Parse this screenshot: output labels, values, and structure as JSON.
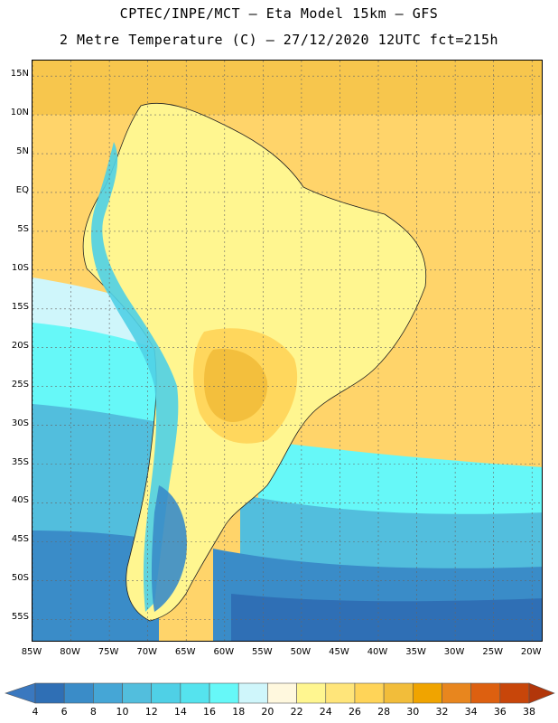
{
  "title_line1": "CPTEC/INPE/MCT –  Eta Model 15km – GFS",
  "title_line2": "2 Metre Temperature (C) – 27/12/2020 12UTC fct=215h",
  "lat_labels": [
    "15N",
    "10N",
    "5N",
    "EQ",
    "5S",
    "10S",
    "15S",
    "20S",
    "25S",
    "30S",
    "35S",
    "40S",
    "45S",
    "50S",
    "55S"
  ],
  "lon_labels": [
    "85W",
    "80W",
    "75W",
    "70W",
    "65W",
    "60W",
    "55W",
    "50W",
    "45W",
    "40W",
    "35W",
    "30W",
    "25W",
    "20W"
  ],
  "colorbar": {
    "labels": [
      "4",
      "6",
      "8",
      "10",
      "12",
      "14",
      "16",
      "18",
      "20",
      "22",
      "24",
      "26",
      "28",
      "30",
      "32",
      "34",
      "36",
      "38"
    ],
    "colors": [
      "#3a78bf",
      "#2f6fb5",
      "#3a8cc8",
      "#45a6d6",
      "#52bedd",
      "#4fd0e6",
      "#55e3ee",
      "#66f8f8",
      "#cff6fb",
      "#fff8de",
      "#fff690",
      "#ffe57a",
      "#ffd458",
      "#f2bd3a",
      "#f0a400",
      "#e8861e",
      "#dd6010",
      "#c8460a",
      "#b2360a"
    ]
  }
}
